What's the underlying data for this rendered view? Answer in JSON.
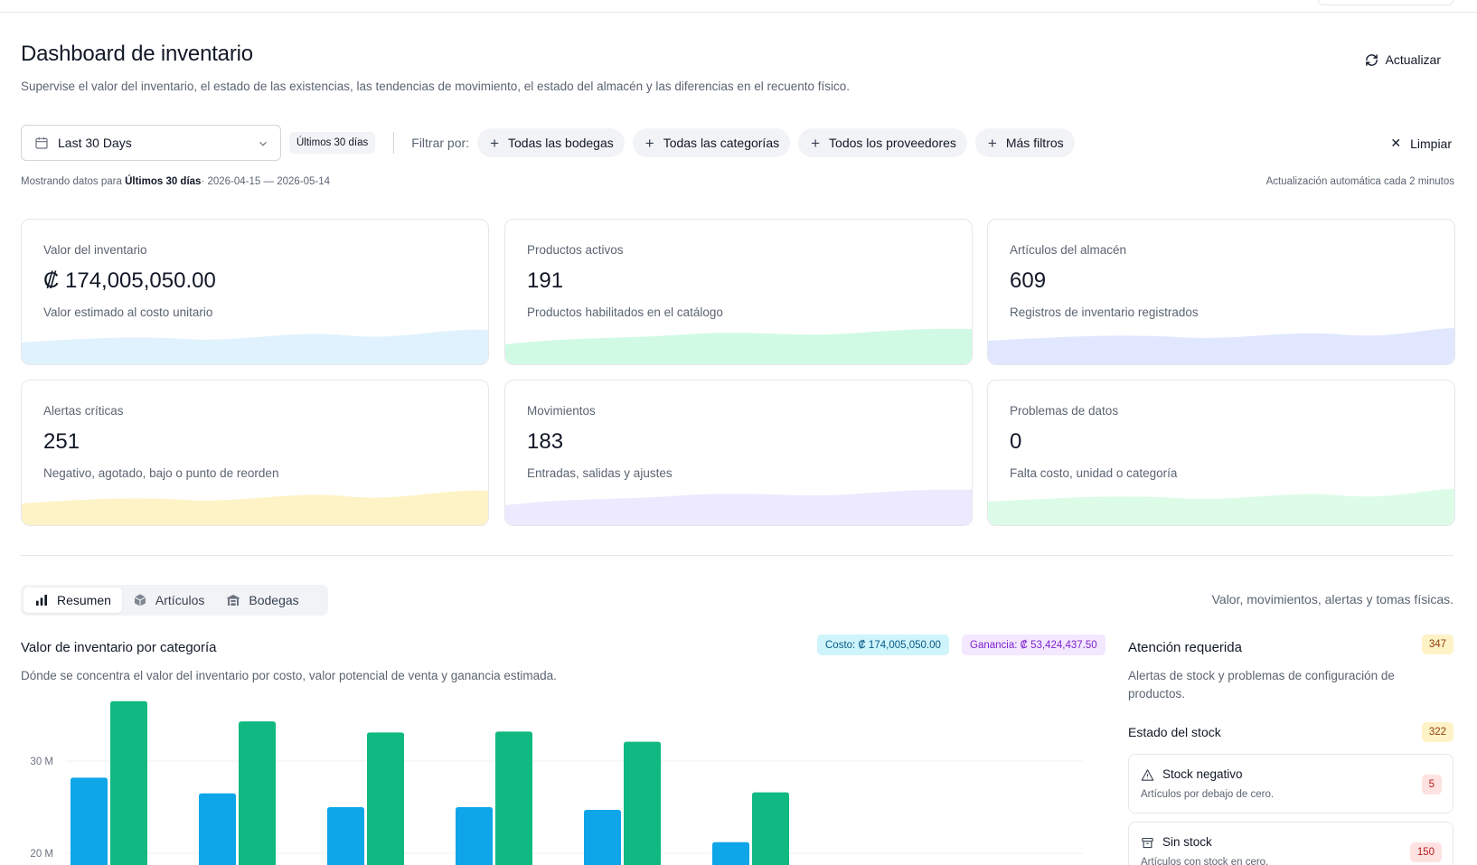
{
  "header": {
    "title": "Dashboard de inventario",
    "subtitle": "Supervise el valor del inventario, el estado de las existencias, las tendencias de movimiento, el estado del almacén y las diferencias en el recuento físico.",
    "refresh_label": "Actualizar"
  },
  "filters": {
    "date_range_value": "Last 30 Days",
    "range_badge": "Últimos 30 días",
    "filter_by_label": "Filtrar por:",
    "chips": [
      "Todas las bodegas",
      "Todas las categorías",
      "Todos los proveedores",
      "Más filtros"
    ],
    "clear_label": "Limpiar"
  },
  "status": {
    "showing_prefix": "Mostrando datos para",
    "showing_range": "Últimos 30 días",
    "showing_dates": "· 2026-04-15 — 2026-05-14",
    "auto_update": "Actualización automática cada 2 minutos"
  },
  "kpis": [
    {
      "label": "Valor del inventario",
      "value": "₡ 174,005,050.00",
      "desc": "Valor estimado al costo unitario",
      "color": "#e0f2fe",
      "stroke": "#bae6fd"
    },
    {
      "label": "Productos activos",
      "value": "191",
      "desc": "Productos habilitados en el catálogo",
      "color": "#d1fae5",
      "stroke": "#a7f3d0"
    },
    {
      "label": "Artículos del almacén",
      "value": "609",
      "desc": "Registros de inventario registrados",
      "color": "#e0e7ff",
      "stroke": "#c7d2fe"
    },
    {
      "label": "Alertas críticas",
      "value": "251",
      "desc": "Negativo, agotado, bajo o punto de reorden",
      "color": "#fef3c7",
      "stroke": "#fde68a"
    },
    {
      "label": "Movimientos",
      "value": "183",
      "desc": "Entradas, salidas y ajustes",
      "color": "#ede9fe",
      "stroke": "#ddd6fe"
    },
    {
      "label": "Problemas de datos",
      "value": "0",
      "desc": "Falta costo, unidad o categoría",
      "color": "#dcfce7",
      "stroke": "#bbf7d0"
    }
  ],
  "tabs": [
    {
      "label": "Resumen",
      "icon": "bar-chart-icon"
    },
    {
      "label": "Artículos",
      "icon": "box-icon"
    },
    {
      "label": "Bodegas",
      "icon": "warehouse-icon"
    }
  ],
  "tabs_note": "Valor, movimientos, alertas y tomas físicas.",
  "category_section": {
    "title": "Valor de inventario por categoría",
    "desc": "Dónde se concentra el valor del inventario por costo, valor potencial de venta y ganancia estimada.",
    "cost_pill": "Costo: ₡ 174,005,050.00",
    "gain_pill": "Ganancia: ₡ 53,424,437.50"
  },
  "chart_data": {
    "type": "bar",
    "categories": [
      "",
      "",
      "",
      "",
      "",
      ""
    ],
    "series": [
      {
        "name": "",
        "color": "#0ea5e9",
        "values": [
          28.2,
          26.5,
          25.0,
          25.0,
          24.7,
          21.2
        ]
      },
      {
        "name": "",
        "color": "#10b981",
        "values": [
          36.5,
          34.3,
          33.1,
          33.2,
          32.1,
          26.6
        ]
      }
    ],
    "yticks": [
      {
        "value": 30,
        "label": "30 M"
      },
      {
        "value": 20,
        "label": "20 M"
      }
    ],
    "ylim": [
      18,
      38
    ],
    "xlabel": "",
    "ylabel": "",
    "grid": true
  },
  "attention": {
    "title": "Atención requerida",
    "count": "347",
    "desc": "Alertas de stock y problemas de configuración de productos.",
    "stock_title": "Estado del stock",
    "stock_count": "322",
    "items": [
      {
        "title": "Stock negativo",
        "desc": "Artículos por debajo de cero.",
        "count": "5",
        "icon": "alert-triangle-icon"
      },
      {
        "title": "Sin stock",
        "desc": "Artículos con stock en cero.",
        "count": "150",
        "icon": "archive-icon"
      }
    ]
  }
}
